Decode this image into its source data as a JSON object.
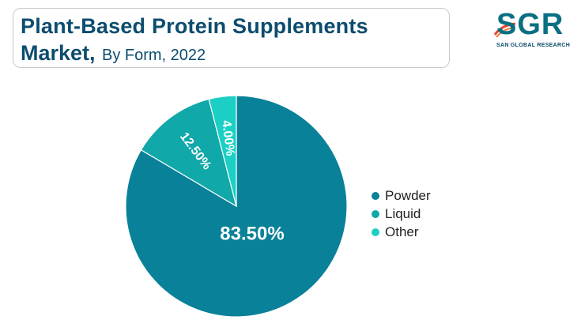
{
  "title": {
    "line1": "Plant-Based Protein Supplements",
    "line2_main": "Market,",
    "line2_sub": "By Form, 2022"
  },
  "logo": {
    "letters": "SGR",
    "tagline": "SAN GLOBAL RESEARCH",
    "brand_color": "#0a6f82",
    "accent_color": "#e8452c"
  },
  "chart_data": {
    "type": "pie",
    "categories": [
      "Powder",
      "Liquid",
      "Other"
    ],
    "values": [
      83.5,
      12.5,
      4.0
    ],
    "labels": [
      "83.50%",
      "12.50%",
      "4.00%"
    ],
    "colors": [
      "#088199",
      "#10a8a8",
      "#1ccfc4"
    ],
    "legend_position": "right"
  }
}
